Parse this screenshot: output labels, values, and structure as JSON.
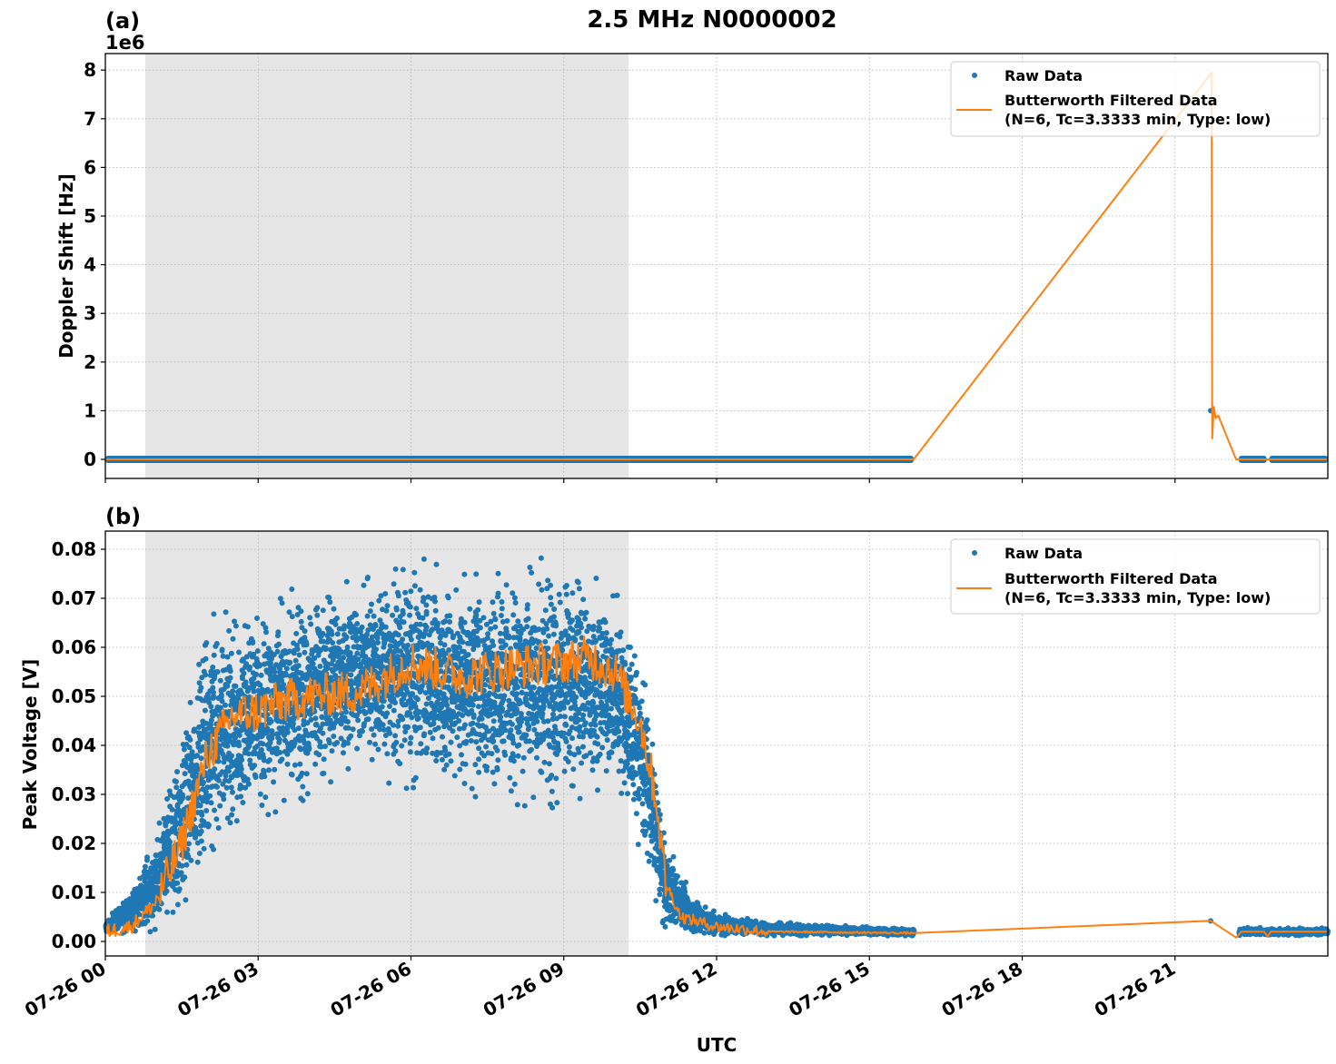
{
  "figure": {
    "suptitle": "2.5 MHz N0000002",
    "xlabel": "UTC",
    "x_tick_labels": [
      "07-26 00",
      "07-26 03",
      "07-26 06",
      "07-26 09",
      "07-26 12",
      "07-26 15",
      "07-26 18",
      "07-26 21"
    ],
    "shaded_region_hours": [
      0.78,
      10.27
    ],
    "colors": {
      "raw": "#1f77b4",
      "filtered": "#ff7f0e",
      "shade": "#e6e6e6",
      "grid": "#b0b0b0"
    }
  },
  "panels": [
    {
      "label": "(a)",
      "ylabel": "Doppler Shift [Hz]",
      "offset_text": "1e6",
      "y_tick_labels": [
        "0",
        "1",
        "2",
        "3",
        "4",
        "5",
        "6",
        "7",
        "8"
      ],
      "legend": {
        "raw_label": "Raw Data",
        "filtered_label_line1": "Butterworth Filtered Data",
        "filtered_label_line2": "(N=6, Tc=3.3333 min, Type: low)"
      }
    },
    {
      "label": "(b)",
      "ylabel": "Peak Voltage [V]",
      "offset_text": "",
      "y_tick_labels": [
        "0.00",
        "0.01",
        "0.02",
        "0.03",
        "0.04",
        "0.05",
        "0.06",
        "0.07",
        "0.08"
      ],
      "legend": {
        "raw_label": "Raw Data",
        "filtered_label_line1": "Butterworth Filtered Data",
        "filtered_label_line2": "(N=6, Tc=3.3333 min, Type: low)"
      }
    }
  ],
  "chart_data": [
    {
      "type": "line",
      "title": "(a)",
      "suptitle": "2.5 MHz N0000002",
      "xlabel": "",
      "ylabel": "Doppler Shift [Hz]",
      "y_scale_offset": "1e6",
      "xlim_hours": [
        0,
        24
      ],
      "ylim": [
        -0.4,
        8.35
      ],
      "grid": true,
      "legend_position": "upper right",
      "x_tick_labels": [
        "07-26 00",
        "07-26 03",
        "07-26 06",
        "07-26 09",
        "07-26 12",
        "07-26 15",
        "07-26 18",
        "07-26 21"
      ],
      "shaded_span_hours": [
        0.78,
        10.27
      ],
      "series": [
        {
          "name": "Raw Data",
          "style": "scatter",
          "segments_hours": [
            [
              0,
              15.87
            ],
            [
              22.25,
              22.8
            ],
            [
              22.85,
              24
            ]
          ],
          "value": 0,
          "outlier": {
            "hour": 21.7,
            "value": 1.0
          }
        },
        {
          "name": "Butterworth Filtered Data (N=6, Tc=3.3333 min, Type: low)",
          "style": "line",
          "points_hours_values": [
            [
              0,
              0
            ],
            [
              15.87,
              0
            ],
            [
              21.72,
              7.95
            ],
            [
              21.73,
              0.43
            ],
            [
              21.76,
              1.08
            ],
            [
              21.8,
              0.85
            ],
            [
              21.85,
              0.9
            ],
            [
              22.2,
              0
            ],
            [
              24,
              0
            ]
          ]
        }
      ]
    },
    {
      "type": "scatter",
      "title": "(b)",
      "xlabel": "UTC",
      "ylabel": "Peak Voltage [V]",
      "xlim_hours": [
        0,
        24
      ],
      "ylim": [
        -0.003,
        0.0835
      ],
      "grid": true,
      "legend_position": "upper right",
      "x_tick_labels": [
        "07-26 00",
        "07-26 03",
        "07-26 06",
        "07-26 09",
        "07-26 12",
        "07-26 15",
        "07-26 18",
        "07-26 21"
      ],
      "shaded_span_hours": [
        0.78,
        10.27
      ],
      "series": [
        {
          "name": "Raw Data",
          "style": "scatter",
          "envelope_hours": [
            0,
            0.5,
            1.0,
            1.5,
            2.0,
            3.0,
            4.0,
            5.0,
            6.0,
            7.0,
            8.0,
            9.0,
            10.0,
            10.5,
            11.0,
            11.5,
            12.0,
            13.0,
            15.87,
            22.25,
            24.0
          ],
          "envelope_low": [
            0.0015,
            0.002,
            0.002,
            0.004,
            0.015,
            0.025,
            0.03,
            0.035,
            0.032,
            0.03,
            0.028,
            0.028,
            0.03,
            0.02,
            0.002,
            0.0012,
            0.0012,
            0.0012,
            0.0012,
            0.0012,
            0.0012
          ],
          "envelope_high": [
            0.004,
            0.01,
            0.021,
            0.045,
            0.065,
            0.07,
            0.072,
            0.074,
            0.077,
            0.077,
            0.077,
            0.078,
            0.072,
            0.06,
            0.02,
            0.01,
            0.006,
            0.004,
            0.0025,
            0.0028,
            0.0028
          ],
          "outlier": {
            "hour": 21.7,
            "value": 0.0042
          }
        },
        {
          "name": "Butterworth Filtered Data (N=6, Tc=3.3333 min, Type: low)",
          "style": "line",
          "points_hours_values": [
            [
              0,
              0.002
            ],
            [
              0.5,
              0.003
            ],
            [
              1.0,
              0.008
            ],
            [
              1.5,
              0.02
            ],
            [
              2.0,
              0.038
            ],
            [
              2.5,
              0.046
            ],
            [
              3.0,
              0.047
            ],
            [
              3.5,
              0.049
            ],
            [
              4.0,
              0.05
            ],
            [
              5.0,
              0.051
            ],
            [
              6.0,
              0.057
            ],
            [
              7.0,
              0.054
            ],
            [
              8.0,
              0.056
            ],
            [
              9.0,
              0.057
            ],
            [
              9.5,
              0.058
            ],
            [
              10.0,
              0.055
            ],
            [
              10.5,
              0.045
            ],
            [
              10.8,
              0.03
            ],
            [
              11.0,
              0.012
            ],
            [
              11.3,
              0.005
            ],
            [
              12.0,
              0.003
            ],
            [
              13.0,
              0.002
            ],
            [
              15.87,
              0.0017
            ],
            [
              21.7,
              0.0042
            ],
            [
              22.2,
              0.0008
            ],
            [
              22.3,
              0.002
            ],
            [
              22.75,
              0.002
            ],
            [
              22.82,
              0.001
            ],
            [
              22.88,
              0.002
            ],
            [
              24,
              0.002
            ]
          ]
        }
      ]
    }
  ]
}
